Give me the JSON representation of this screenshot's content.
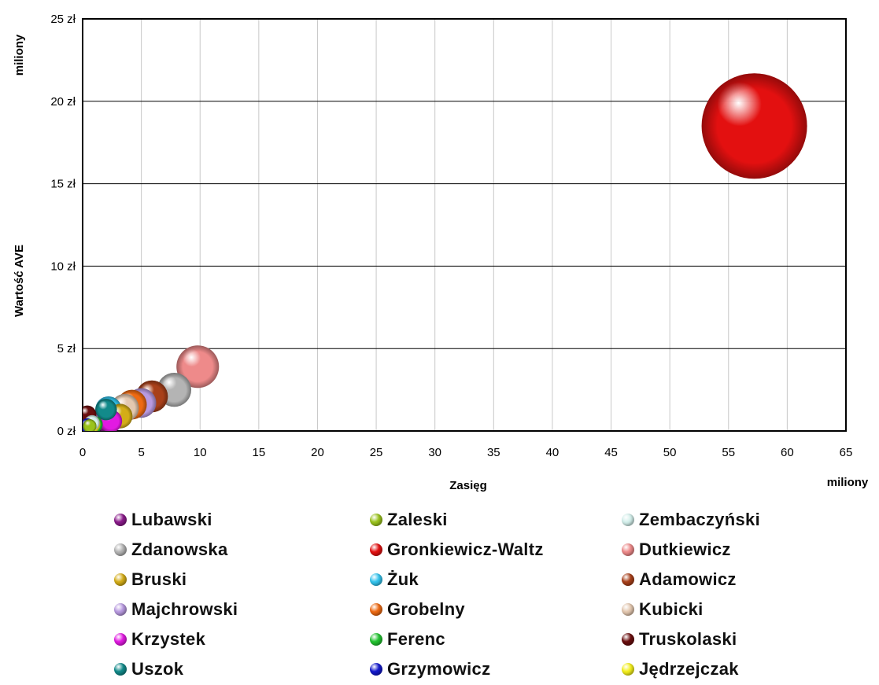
{
  "chart_data": {
    "type": "bubble",
    "title": "",
    "xlabel": "Zasięg",
    "ylabel": "Wartość AVE",
    "x_unit_label": "miliony",
    "y_unit_label": "miliony",
    "xlim": [
      0,
      65
    ],
    "ylim": [
      0,
      25
    ],
    "x_ticks": [
      0,
      5,
      10,
      15,
      20,
      25,
      30,
      35,
      40,
      45,
      50,
      55,
      60,
      65
    ],
    "y_ticks": [
      0,
      5,
      10,
      15,
      20,
      25
    ],
    "y_tick_labels": [
      "0 zł",
      "5 zł",
      "10 zł",
      "15 zł",
      "20 zł",
      "25 zł"
    ],
    "grid": "both",
    "legend_position": "bottom",
    "series": [
      {
        "name": "Lubawski",
        "color": "#8a1a8a",
        "x": 1.8,
        "y": 0.7,
        "size": 1.2
      },
      {
        "name": "Zaleski",
        "color": "#9ac31c",
        "x": 0.6,
        "y": 0.3,
        "size": 0.4
      },
      {
        "name": "Zembaczyński",
        "color": "#d4f0ec",
        "x": 0.8,
        "y": 0.5,
        "size": 0.5
      },
      {
        "name": "Zdanowska",
        "color": "#b4b4b4",
        "x": 7.8,
        "y": 2.5,
        "size": 2.5
      },
      {
        "name": "Gronkiewicz-Waltz",
        "color": "#e31010",
        "x": 57.2,
        "y": 18.5,
        "size": 24.0
      },
      {
        "name": "Dutkiewicz",
        "color": "#ee8a8a",
        "x": 9.8,
        "y": 3.9,
        "size": 3.9
      },
      {
        "name": "Bruski",
        "color": "#d4ad18",
        "x": 3.2,
        "y": 0.9,
        "size": 1.3
      },
      {
        "name": "Żuk",
        "color": "#33c4ee",
        "x": 2.2,
        "y": 1.3,
        "size": 1.5
      },
      {
        "name": "Adamowicz",
        "color": "#a8401a",
        "x": 5.9,
        "y": 2.1,
        "size": 2.2
      },
      {
        "name": "Majchrowski",
        "color": "#b89ae0",
        "x": 5.0,
        "y": 1.7,
        "size": 1.9
      },
      {
        "name": "Grobelny",
        "color": "#ee6a12",
        "x": 4.2,
        "y": 1.6,
        "size": 1.9
      },
      {
        "name": "Kubicki",
        "color": "#e4c8b0",
        "x": 3.6,
        "y": 1.4,
        "size": 1.7
      },
      {
        "name": "Krzystek",
        "color": "#e21ae2",
        "x": 2.4,
        "y": 0.6,
        "size": 1.1
      },
      {
        "name": "Ferenc",
        "color": "#22c430",
        "x": 1.0,
        "y": 0.4,
        "size": 0.6
      },
      {
        "name": "Truskolaski",
        "color": "#6a0e0e",
        "x": 0.4,
        "y": 1.0,
        "size": 0.7
      },
      {
        "name": "Uszok",
        "color": "#128a8a",
        "x": 2.0,
        "y": 1.3,
        "size": 1.0
      },
      {
        "name": "Grzymowicz",
        "color": "#1218cc",
        "x": 0.4,
        "y": 0.3,
        "size": 0.5
      },
      {
        "name": "Jędrzejczak",
        "color": "#f4f01c",
        "x": 0.8,
        "y": 0.4,
        "size": 0.6
      }
    ]
  },
  "legend_order": [
    "Lubawski",
    "Zaleski",
    "Zembaczyński",
    "Zdanowska",
    "Gronkiewicz-Waltz",
    "Dutkiewicz",
    "Bruski",
    "Żuk",
    "Adamowicz",
    "Majchrowski",
    "Grobelny",
    "Kubicki",
    "Krzystek",
    "Ferenc",
    "Truskolaski",
    "Uszok",
    "Grzymowicz",
    "Jędrzejczak"
  ]
}
